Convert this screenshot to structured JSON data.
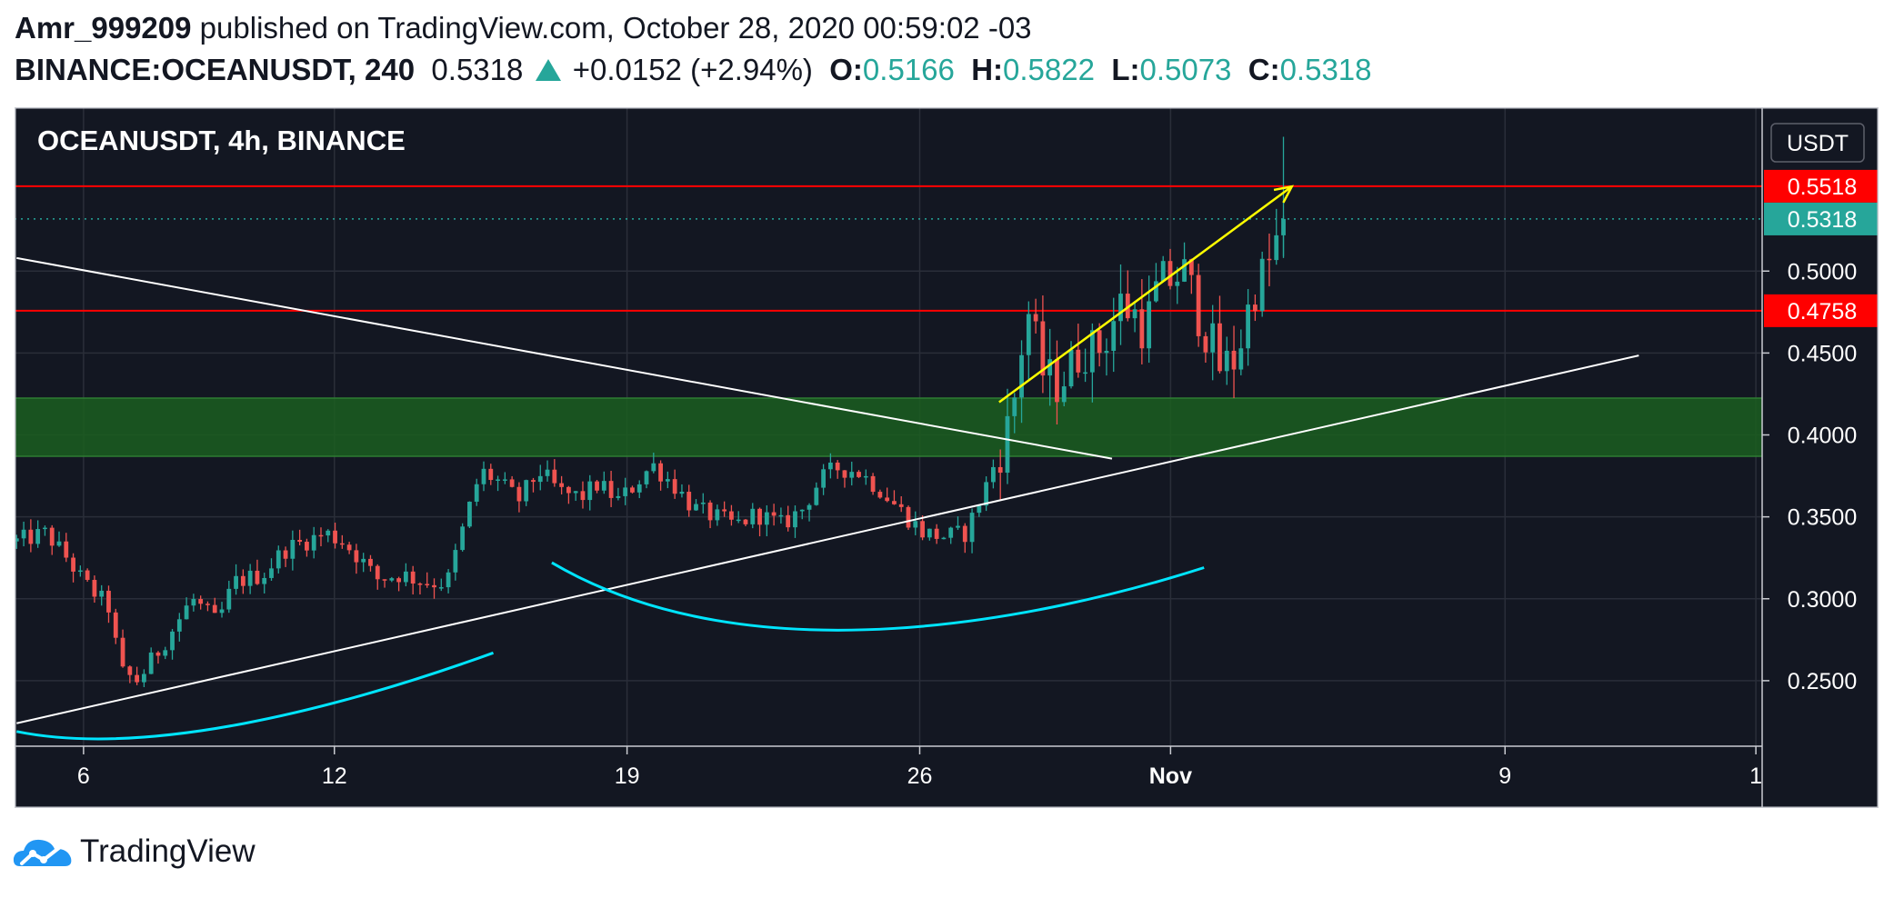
{
  "header": {
    "author": "Amr_999209",
    "published_text": "published on TradingView.com, October 28, 2020 00:59:02 -03",
    "symbol": "BINANCE:OCEANUSDT, 240",
    "last_price": "0.5318",
    "change": "+0.0152 (+2.94%)",
    "open_label": "O:",
    "open_value": "0.5166",
    "high_label": "H:",
    "high_value": "0.5822",
    "low_label": "L:",
    "low_value": "0.5073",
    "close_label": "C:",
    "close_value": "0.5318"
  },
  "footer": {
    "brand": "TradingView"
  },
  "colors": {
    "background": "#131722",
    "grid": "#2a2e39",
    "up": "#26a69a",
    "down": "#ef5350",
    "resistance": "#ff0000",
    "zone": "#1b5e20",
    "trendline": "#ffffff",
    "arrow": "#ffff00",
    "arc": "#00e5ff"
  },
  "chart_data": {
    "type": "candlestick",
    "title": "OCEANUSDT, 4h, BINANCE",
    "currency_label": "USDT",
    "ylim": [
      0.21,
      0.6
    ],
    "y_ticks": [
      "0.2500",
      "0.3000",
      "0.3500",
      "0.4000",
      "0.4500",
      "0.5000"
    ],
    "x_ticks": [
      {
        "label": "6",
        "day": 6,
        "bold": false
      },
      {
        "label": "12",
        "day": 12,
        "bold": false
      },
      {
        "label": "19",
        "day": 19,
        "bold": false
      },
      {
        "label": "26",
        "day": 26,
        "bold": false
      },
      {
        "label": "Nov",
        "day": 32,
        "bold": true
      },
      {
        "label": "9",
        "day": 40,
        "bold": false
      },
      {
        "label": "1",
        "day": 46,
        "bold": false
      }
    ],
    "xlim_days": [
      4.35,
      46.15
    ],
    "price_markers": [
      {
        "label": "0.5518",
        "value": 0.5518,
        "color": "#ff0000"
      },
      {
        "label": "0.5318",
        "value": 0.5318,
        "color": "#26a69a"
      },
      {
        "label": "0.4758",
        "value": 0.4758,
        "color": "#ff0000"
      }
    ],
    "horizontal_lines": [
      0.5518,
      0.4758
    ],
    "zone": [
      0.387,
      0.4225
    ],
    "keypoints": [
      [
        4.4,
        0.335
      ],
      [
        5.1,
        0.34
      ],
      [
        5.6,
        0.325
      ],
      [
        6.0,
        0.31
      ],
      [
        6.6,
        0.295
      ],
      [
        6.9,
        0.255
      ],
      [
        7.3,
        0.25
      ],
      [
        7.7,
        0.265
      ],
      [
        8.1,
        0.28
      ],
      [
        8.6,
        0.3
      ],
      [
        9.2,
        0.285
      ],
      [
        9.6,
        0.31
      ],
      [
        10.3,
        0.315
      ],
      [
        10.8,
        0.33
      ],
      [
        11.3,
        0.335
      ],
      [
        11.8,
        0.34
      ],
      [
        12.2,
        0.335
      ],
      [
        12.6,
        0.325
      ],
      [
        13.0,
        0.312
      ],
      [
        13.6,
        0.315
      ],
      [
        14.2,
        0.31
      ],
      [
        14.7,
        0.31
      ],
      [
        15.1,
        0.345
      ],
      [
        15.5,
        0.378
      ],
      [
        15.9,
        0.372
      ],
      [
        16.4,
        0.36
      ],
      [
        16.9,
        0.378
      ],
      [
        17.4,
        0.365
      ],
      [
        17.9,
        0.362
      ],
      [
        18.3,
        0.37
      ],
      [
        18.8,
        0.36
      ],
      [
        19.2,
        0.37
      ],
      [
        19.6,
        0.382
      ],
      [
        20.1,
        0.37
      ],
      [
        20.6,
        0.355
      ],
      [
        21.1,
        0.35
      ],
      [
        21.6,
        0.345
      ],
      [
        22.1,
        0.352
      ],
      [
        22.7,
        0.345
      ],
      [
        23.2,
        0.355
      ],
      [
        23.6,
        0.372
      ],
      [
        24.0,
        0.38
      ],
      [
        24.5,
        0.378
      ],
      [
        25.0,
        0.368
      ],
      [
        25.5,
        0.355
      ],
      [
        26.1,
        0.34
      ],
      [
        26.6,
        0.338
      ],
      [
        27.1,
        0.34
      ],
      [
        27.6,
        0.37
      ],
      [
        27.9,
        0.39
      ],
      [
        28.2,
        0.41
      ],
      [
        28.4,
        0.45
      ],
      [
        28.6,
        0.475
      ],
      [
        28.9,
        0.44
      ],
      [
        29.2,
        0.43
      ],
      [
        29.6,
        0.44
      ],
      [
        29.9,
        0.455
      ],
      [
        30.2,
        0.45
      ],
      [
        30.5,
        0.462
      ],
      [
        30.8,
        0.48
      ],
      [
        31.1,
        0.475
      ],
      [
        31.4,
        0.465
      ],
      [
        31.7,
        0.49
      ],
      [
        32.0,
        0.495
      ],
      [
        32.3,
        0.5
      ],
      [
        32.6,
        0.48
      ],
      [
        32.9,
        0.46
      ],
      [
        33.2,
        0.44
      ],
      [
        33.5,
        0.445
      ],
      [
        33.7,
        0.46
      ],
      [
        34.0,
        0.49
      ],
      [
        34.3,
        0.5
      ],
      [
        34.5,
        0.515
      ],
      [
        34.7,
        0.5318
      ]
    ],
    "candle_count": 180,
    "annotations": {
      "descending_trendline": [
        [
          4.4,
          0.508
        ],
        [
          30.6,
          0.3855
        ]
      ],
      "ascending_trendline": [
        [
          4.4,
          0.224
        ],
        [
          43.2,
          0.4485
        ]
      ],
      "arrow": [
        [
          27.9,
          0.42
        ],
        [
          34.9,
          0.5516
        ]
      ],
      "arcs": [
        [
          [
            4.4,
            0.219
          ],
          [
            7.5,
            0.203
          ],
          [
            12.0,
            0.232
          ],
          [
            15.8,
            0.267
          ]
        ],
        [
          [
            17.2,
            0.322
          ],
          [
            22.0,
            0.25
          ],
          [
            29.0,
            0.288
          ],
          [
            32.8,
            0.319
          ]
        ]
      ]
    }
  }
}
